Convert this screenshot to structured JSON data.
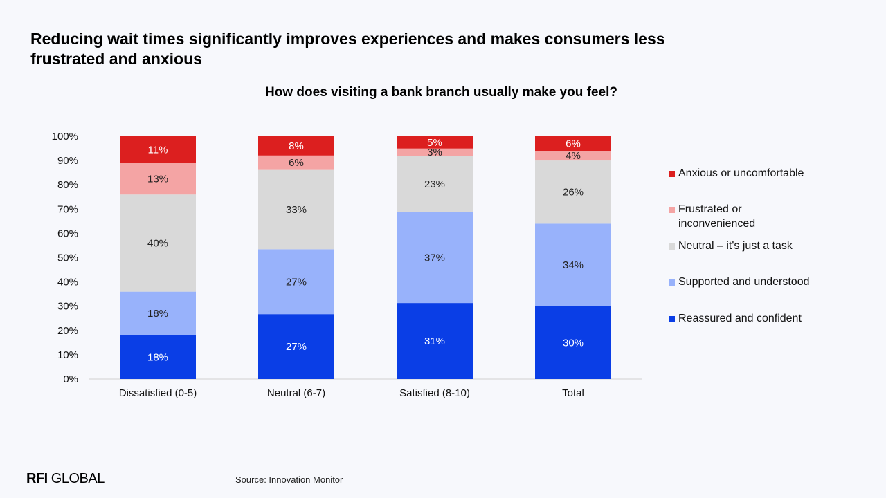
{
  "headline": "Reducing wait times significantly improves experiences and makes consumers less frustrated and anxious",
  "chart_data": {
    "type": "bar",
    "stacked": true,
    "title": "How does visiting a bank branch usually make you feel?",
    "categories": [
      "Dissatisfied (0-5)",
      "Neutral (6-7)",
      "Satisfied (8-10)",
      "Total"
    ],
    "yticks": [
      "0%",
      "10%",
      "20%",
      "30%",
      "40%",
      "50%",
      "60%",
      "70%",
      "80%",
      "90%",
      "100%"
    ],
    "ylim": [
      0,
      100
    ],
    "legend_position": "right",
    "grid": false,
    "series": [
      {
        "name": "Reassured and confident",
        "color": "#0a3ee6",
        "label_color": "#ffffff",
        "values": [
          18,
          27,
          31,
          30
        ],
        "labels": [
          "18%",
          "27%",
          "31%",
          "30%"
        ]
      },
      {
        "name": "Supported and understood",
        "color": "#98b2fb",
        "label_color": "#222222",
        "values": [
          18,
          27,
          37,
          34
        ],
        "labels": [
          "18%",
          "27%",
          "37%",
          "34%"
        ]
      },
      {
        "name": "Neutral – it's just a task",
        "color": "#d9d9d9",
        "label_color": "#222222",
        "values": [
          40,
          33,
          23,
          26
        ],
        "labels": [
          "40%",
          "33%",
          "23%",
          "26%"
        ]
      },
      {
        "name": "Frustrated or\ninconvenienced",
        "color": "#f4a4a4",
        "label_color": "#222222",
        "values": [
          13,
          6,
          3,
          4
        ],
        "labels": [
          "13%",
          "6%",
          "3%",
          "4%"
        ]
      },
      {
        "name": "Anxious or uncomfortable",
        "color": "#dc1f1f",
        "label_color": "#ffffff",
        "values": [
          11,
          8,
          5,
          6
        ],
        "labels": [
          "11%",
          "8%",
          "5%",
          "6%"
        ]
      }
    ]
  },
  "footer": {
    "logo_bold": "RFI",
    "logo_rest": " GLOBAL",
    "source": "Source: Innovation Monitor"
  }
}
